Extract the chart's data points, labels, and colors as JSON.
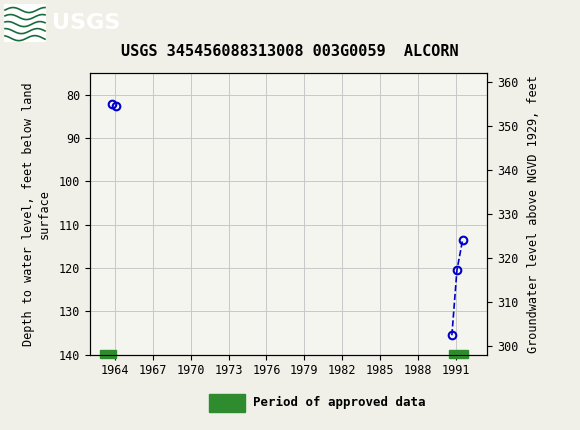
{
  "title": "USGS 345456088313008 003G0059  ALCORN",
  "ylabel_left": "Depth to water level, feet below land\nsurface",
  "ylabel_right": "Groundwater level above NGVD 1929, feet",
  "ylim_left": [
    140,
    75
  ],
  "ylim_right": [
    298,
    362
  ],
  "xlim": [
    1962.0,
    1993.5
  ],
  "xticks": [
    1964,
    1967,
    1970,
    1973,
    1976,
    1979,
    1982,
    1985,
    1988,
    1991
  ],
  "yticks_left": [
    80,
    90,
    100,
    110,
    120,
    130,
    140
  ],
  "yticks_right": [
    300,
    310,
    320,
    330,
    340,
    350,
    360
  ],
  "data_x": [
    1963.75,
    1964.05,
    1990.7,
    1991.1,
    1991.55
  ],
  "data_y": [
    82.2,
    82.6,
    135.5,
    120.5,
    113.5
  ],
  "point_color": "#0000cc",
  "line_color": "#0000cc",
  "approved_bars": [
    {
      "x_start": 1962.8,
      "x_end": 1964.1
    },
    {
      "x_start": 1990.5,
      "x_end": 1992.0
    }
  ],
  "approved_color": "#2e8b2e",
  "approved_label": "Period of approved data",
  "header_color": "#1a6b3c",
  "grid_color": "#c8c8c8",
  "bg_color": "#f5f5f0",
  "title_fontsize": 11,
  "axis_label_fontsize": 8.5,
  "tick_fontsize": 8.5,
  "legend_fontsize": 9
}
